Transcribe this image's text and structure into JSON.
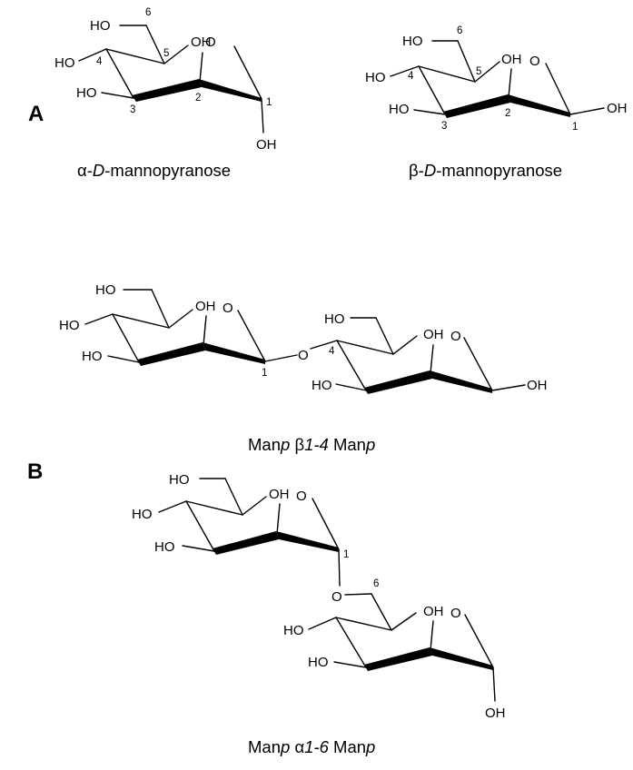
{
  "panels": {
    "a": "A",
    "b": "B"
  },
  "groups": {
    "hydroxyl": "OH",
    "hydroxyl_left": "HO",
    "ring_oxygen": "O"
  },
  "carbon_numbers": {
    "c1": "1",
    "c2": "2",
    "c3": "3",
    "c4": "4",
    "c5": "5",
    "c6": "6"
  },
  "captions": {
    "alpha": {
      "greek": "α",
      "d": "D",
      "rest": "mannopyranose"
    },
    "beta": {
      "greek": "β",
      "d": "D",
      "rest": "mannopyranose"
    },
    "b14": {
      "man1": "Man",
      "p1": "p",
      "greek": "β",
      "link": "1-4",
      "man2": "Man",
      "p2": "p"
    },
    "a16": {
      "man1": "Man",
      "p1": "p",
      "greek": "α",
      "link": "1-6",
      "man2": "Man",
      "p2": "p"
    }
  }
}
